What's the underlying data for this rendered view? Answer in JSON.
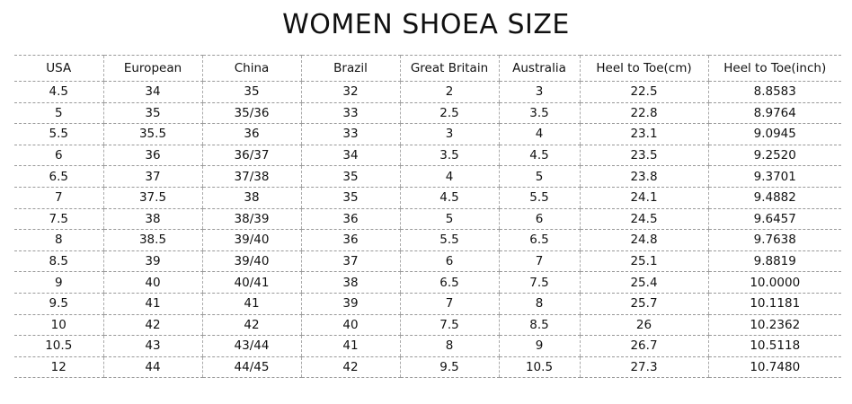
{
  "title": "WOMEN SHOEA SIZE",
  "columns": [
    "USA",
    "European",
    "China",
    "Brazil",
    "Great Britain",
    "Australia",
    "Heel to Toe(cm)",
    "Heel to Toe(inch)"
  ],
  "rows": [
    [
      "4.5",
      "34",
      "35",
      "32",
      "2",
      "3",
      "22.5",
      "8.8583"
    ],
    [
      "5",
      "35",
      "35/36",
      "33",
      "2.5",
      "3.5",
      "22.8",
      "8.9764"
    ],
    [
      "5.5",
      "35.5",
      "36",
      "33",
      "3",
      "4",
      "23.1",
      "9.0945"
    ],
    [
      "6",
      "36",
      "36/37",
      "34",
      "3.5",
      "4.5",
      "23.5",
      "9.2520"
    ],
    [
      "6.5",
      "37",
      "37/38",
      "35",
      "4",
      "5",
      "23.8",
      "9.3701"
    ],
    [
      "7",
      "37.5",
      "38",
      "35",
      "4.5",
      "5.5",
      "24.1",
      "9.4882"
    ],
    [
      "7.5",
      "38",
      "38/39",
      "36",
      "5",
      "6",
      "24.5",
      "9.6457"
    ],
    [
      "8",
      "38.5",
      "39/40",
      "36",
      "5.5",
      "6.5",
      "24.8",
      "9.7638"
    ],
    [
      "8.5",
      "39",
      "39/40",
      "37",
      "6",
      "7",
      "25.1",
      "9.8819"
    ],
    [
      "9",
      "40",
      "40/41",
      "38",
      "6.5",
      "7.5",
      "25.4",
      "10.0000"
    ],
    [
      "9.5",
      "41",
      "41",
      "39",
      "7",
      "8",
      "25.7",
      "10.1181"
    ],
    [
      "10",
      "42",
      "42",
      "40",
      "7.5",
      "8.5",
      "26",
      "10.2362"
    ],
    [
      "10.5",
      "43",
      "43/44",
      "41",
      "8",
      "9",
      "26.7",
      "10.5118"
    ],
    [
      "12",
      "44",
      "44/45",
      "42",
      "9.5",
      "10.5",
      "27.3",
      "10.7480"
    ]
  ]
}
